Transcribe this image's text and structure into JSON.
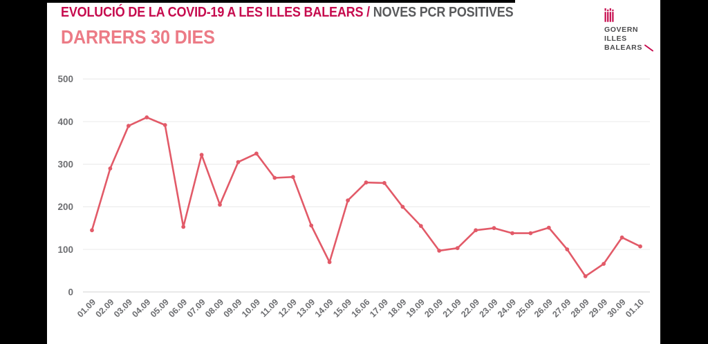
{
  "header": {
    "title_primary": "EVOLUCIÓ DE LA COVID-19 A LES ILLES BALEARS / ",
    "title_secondary": "NOVES PCR POSITIVES",
    "subtitle": "DARRERS 30 DIES"
  },
  "logo": {
    "line1": "GOVERN",
    "line2": "ILLES",
    "line3": "BALEARS",
    "emblem": "balearic-crest-icon",
    "emblem_color": "#c60b4e",
    "text_color": "#4a4a4c"
  },
  "chart_data": {
    "type": "line",
    "title": "EVOLUCIÓ DE LA COVID-19 A LES ILLES BALEARS / NOVES PCR POSITIVES",
    "subtitle": "DARRERS 30 DIES",
    "categories": [
      "01.09",
      "02.09",
      "03.09",
      "04.09",
      "05.09",
      "06.09",
      "07.09",
      "08.09",
      "09.09",
      "10.09",
      "11.09",
      "12.09",
      "13.09",
      "14.09",
      "15.09",
      "16.06",
      "17.09",
      "18.09",
      "19.09",
      "20.09",
      "21.09",
      "22.09",
      "23.09",
      "24.09",
      "25.09",
      "26.09",
      "27.09",
      "28.09",
      "29.09",
      "30.09",
      "01.10"
    ],
    "values": [
      145,
      290,
      390,
      410,
      392,
      153,
      322,
      205,
      305,
      325,
      268,
      270,
      156,
      70,
      215,
      257,
      256,
      200,
      155,
      97,
      103,
      145,
      150,
      138,
      138,
      151,
      100,
      37,
      66,
      128,
      107
    ],
    "xlabel": "",
    "ylabel": "",
    "ylim": [
      0,
      500
    ],
    "yticks": [
      0,
      100,
      200,
      300,
      400,
      500
    ],
    "grid": true,
    "legend": false,
    "line_color": "#e25a68",
    "marker": "dot",
    "tick_label_color": "#6d6e71",
    "gridline_color": "#ececec",
    "baseline_color": "#d8d8d8"
  }
}
